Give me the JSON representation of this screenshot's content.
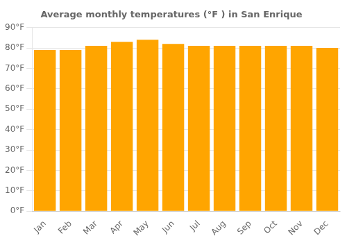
{
  "chart_data": {
    "type": "bar",
    "title": "Average monthly temperatures (°F ) in San Enrique",
    "categories": [
      "Jan",
      "Feb",
      "Mar",
      "Apr",
      "May",
      "Jun",
      "Jul",
      "Aug",
      "Sep",
      "Oct",
      "Nov",
      "Dec"
    ],
    "values": [
      79,
      79,
      81,
      83,
      84,
      82,
      81,
      81,
      81,
      81,
      81,
      80
    ],
    "color": "#FFA500",
    "ylim": [
      0,
      90
    ],
    "yticks": [
      {
        "value": 0,
        "label": "0°F"
      },
      {
        "value": 10,
        "label": "10°F"
      },
      {
        "value": 20,
        "label": "20°F"
      },
      {
        "value": 30,
        "label": "30°F"
      },
      {
        "value": 40,
        "label": "40°F"
      },
      {
        "value": 50,
        "label": "50°F"
      },
      {
        "value": 60,
        "label": "60°F"
      },
      {
        "value": 70,
        "label": "70°F"
      },
      {
        "value": 80,
        "label": "80°F"
      },
      {
        "value": 90,
        "label": "90°F"
      }
    ],
    "grid": true
  }
}
